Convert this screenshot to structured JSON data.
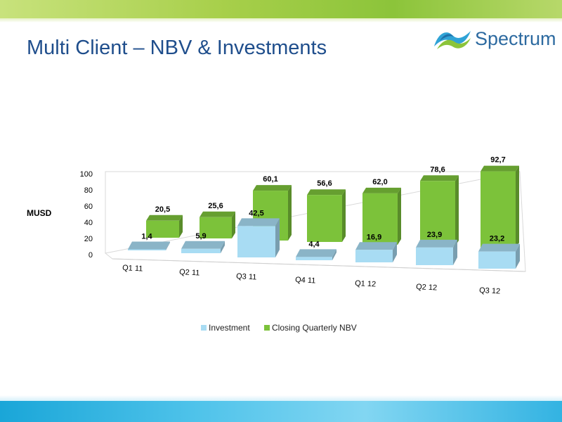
{
  "slide": {
    "title": "Multi Client – NBV & Investments",
    "logo_text": "Spectrum"
  },
  "colors": {
    "title": "#1f4e8c",
    "investment": "#a8dcf3",
    "nbv": "#7cc23a",
    "top_band": "#a7cf4a",
    "bottom_band": "#33b3e2"
  },
  "chart_data": {
    "type": "bar",
    "ylabel": "MUSD",
    "ylim": [
      0,
      100
    ],
    "yticks": [
      "0",
      "20",
      "40",
      "60",
      "80",
      "100"
    ],
    "categories": [
      "Q1 11",
      "Q2 11",
      "Q3 11",
      "Q4 11",
      "Q1 12",
      "Q2 12",
      "Q3 12"
    ],
    "series": [
      {
        "name": "Investment",
        "values": [
          1.4,
          5.9,
          42.5,
          4.4,
          16.9,
          23.9,
          23.2
        ],
        "labels": [
          "1,4",
          "5,9",
          "42,5",
          "4,4",
          "16,9",
          "23,9",
          "23,2"
        ]
      },
      {
        "name": "Closing Quarterly NBV",
        "values": [
          20.5,
          25.6,
          60.1,
          56.6,
          62.0,
          78.6,
          92.7
        ],
        "labels": [
          "20,5",
          "25,6",
          "60,1",
          "56,6",
          "62,0",
          "78,6",
          "92,7"
        ]
      }
    ],
    "legend": "bottom",
    "style": "3d-clustered-columns"
  }
}
